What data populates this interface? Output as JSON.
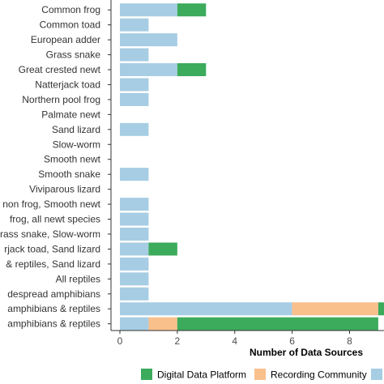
{
  "chart_data": {
    "type": "bar",
    "orientation": "horizontal",
    "stacked": true,
    "xlabel": "Number of Data Sources",
    "ylabel": "",
    "xlim": [
      0,
      9.2
    ],
    "xticks": [
      0,
      2,
      4,
      6,
      8
    ],
    "grid": false,
    "legend_position": "bottom",
    "categories": [
      "Common frog",
      "Common toad",
      "European adder",
      "Grass snake",
      "Great crested newt",
      "Natterjack toad",
      "Northern pool frog",
      "Palmate newt",
      "Sand lizard",
      "Slow-worm",
      "Smooth newt",
      "Smooth snake",
      "Viviparous lizard",
      "non frog, Smooth newt",
      "frog, all newt species",
      "rass snake, Slow-worm",
      "rjack toad, Sand lizard",
      "& reptiles, Sand lizard",
      "All reptiles",
      "despread amphibians",
      "amphibians & reptiles",
      "amphibians & reptiles"
    ],
    "series": [
      {
        "color": "#a6cde3",
        "values": [
          2,
          1,
          2,
          1,
          2,
          1,
          1,
          0,
          1,
          0,
          0,
          1,
          0,
          1,
          1,
          1,
          1,
          1,
          1,
          1,
          6,
          1
        ]
      },
      {
        "name": "Recording Community",
        "color": "#f9c08c",
        "values": [
          0,
          0,
          0,
          0,
          0,
          0,
          0,
          0,
          0,
          0,
          0,
          0,
          0,
          0,
          0,
          0,
          0,
          0,
          0,
          0,
          3,
          1
        ]
      },
      {
        "name": "Digital Data Platform",
        "color": "#3cab5c",
        "values": [
          1,
          0,
          0,
          0,
          1,
          0,
          0,
          0,
          0,
          0,
          0,
          0,
          0,
          0,
          0,
          0,
          1,
          0,
          0,
          0,
          0.5,
          7
        ]
      }
    ],
    "legend": [
      {
        "label": "Digital Data Platform",
        "color": "#3cab5c"
      },
      {
        "label": "Recording Community",
        "color": "#f9c08c"
      },
      {
        "label": "",
        "color": "#a6cde3"
      }
    ]
  }
}
